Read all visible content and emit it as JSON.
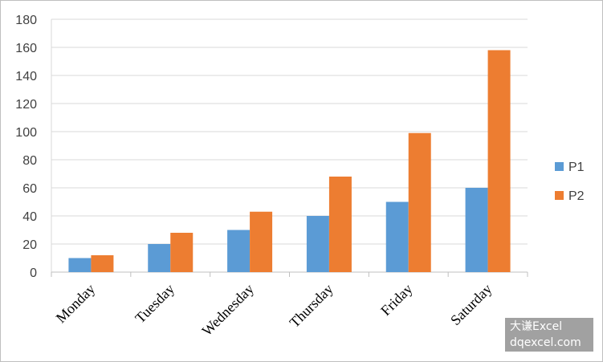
{
  "chart_data": {
    "type": "bar",
    "categories": [
      "Monday",
      "Tuesday",
      "Wednesday",
      "Thursday",
      "Friday",
      "Saturday"
    ],
    "series": [
      {
        "name": "P1",
        "values": [
          10,
          20,
          30,
          40,
          50,
          60
        ],
        "color": "#5b9bd5"
      },
      {
        "name": "P2",
        "values": [
          12,
          28,
          43,
          68,
          99,
          158
        ],
        "color": "#ed7d31"
      }
    ],
    "ylim": [
      0,
      180
    ],
    "yticks": [
      0,
      20,
      40,
      60,
      80,
      100,
      120,
      140,
      160,
      180
    ],
    "grid": true,
    "legend": "right"
  },
  "watermark": {
    "line1": "大谦Excel",
    "line2": "dqexcel.com"
  }
}
